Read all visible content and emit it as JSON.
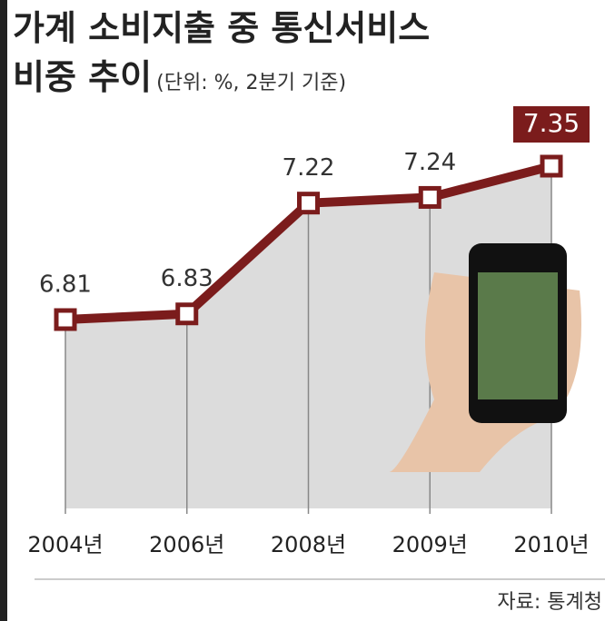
{
  "chart_data": {
    "type": "line",
    "title": "가계 소비지출 중 통신서비스",
    "title_line2": "비중 추이",
    "subtitle": "(단위: %, 2분기 기준)",
    "categories": [
      "2004년",
      "2006년",
      "2008년",
      "2009년",
      "2010년"
    ],
    "values": [
      6.81,
      6.83,
      7.22,
      7.24,
      7.35
    ],
    "color": "#7b1c1c",
    "source": "자료: 통계청"
  }
}
